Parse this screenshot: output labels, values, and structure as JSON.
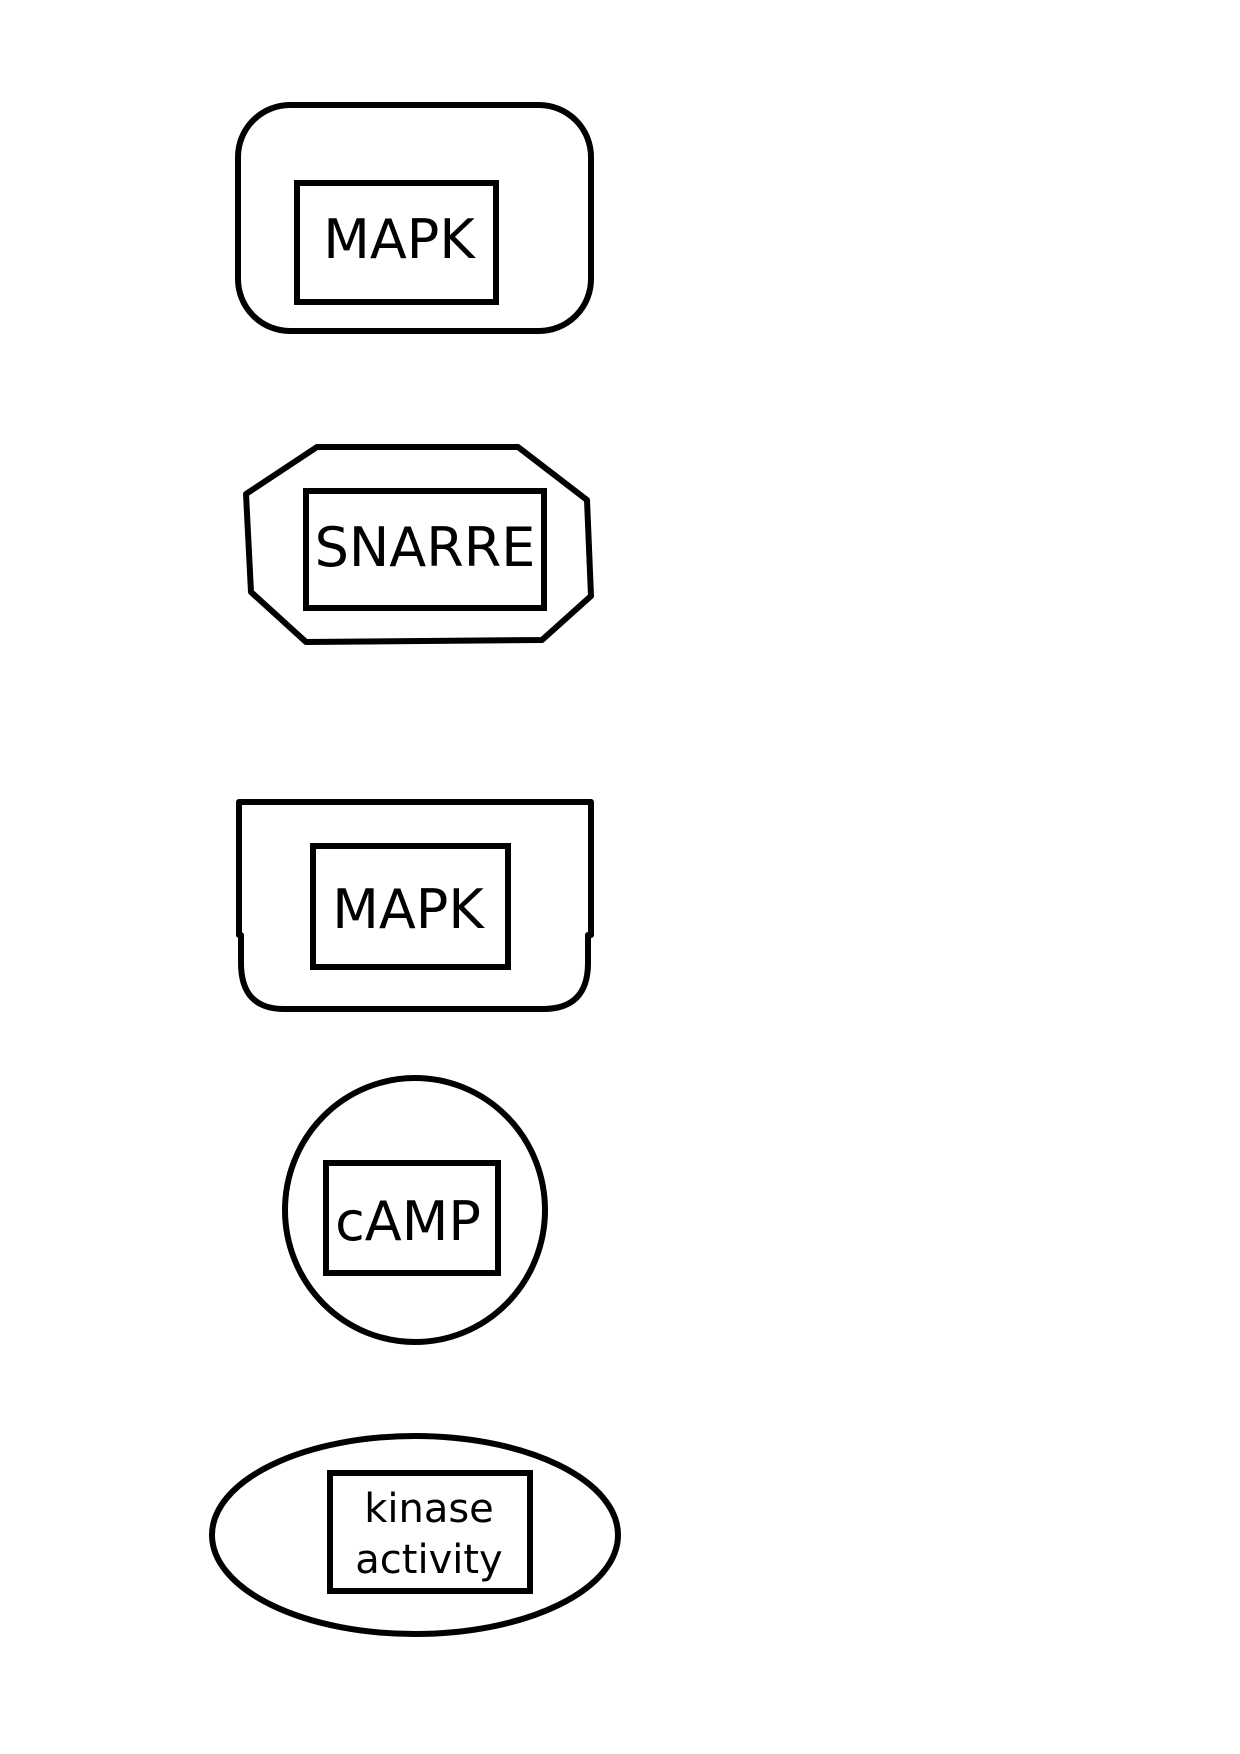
{
  "nodes": [
    {
      "label": "MAPK"
    },
    {
      "label": "SNARRE"
    },
    {
      "label": "MAPK"
    },
    {
      "label": "cAMP"
    },
    {
      "label_line1": "kinase",
      "label_line2": "activity"
    }
  ]
}
